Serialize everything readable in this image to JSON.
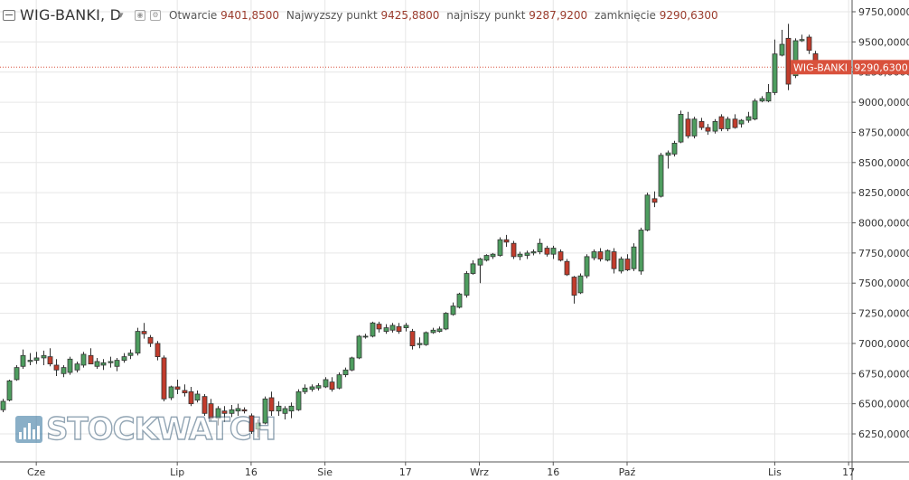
{
  "header": {
    "symbol_title": "WIG-BANKI, D",
    "open_label": "Otwarcie",
    "open_value": "9401,8500",
    "high_label": "Najwyzszy punkt",
    "high_value": "9425,8800",
    "low_label": "najniszy punkt",
    "low_value": "9287,9200",
    "close_label": "zamknięcie",
    "close_value": "9290,6300"
  },
  "price_tag": {
    "name": "WIG-BANKI",
    "value": "9290,6300"
  },
  "watermark": {
    "text": "STOCKWATCH"
  },
  "colors": {
    "up": "#4e9d5f",
    "down": "#c23c2c",
    "wick": "#333333",
    "grid": "#e6e6e6",
    "tag": "#d9513c",
    "last_price_line": "#d9513c"
  },
  "chart_data": {
    "type": "candlestick",
    "title": "WIG-BANKI, D",
    "ylim": [
      6120,
      9800
    ],
    "y_ticks": [
      6250,
      6500,
      6750,
      7000,
      7250,
      7500,
      7750,
      8000,
      8250,
      8500,
      8750,
      9000,
      9250,
      9500,
      9750
    ],
    "y_tick_labels": [
      "6250,0000",
      "6500,0000",
      "6750,0000",
      "7000,0000",
      "7250,0000",
      "7500,0000",
      "7750,0000",
      "8000,0000",
      "8250,0000",
      "8500,0000",
      "8750,0000",
      "9000,0000",
      "9250,0000",
      "9500,0000",
      "9750,0000"
    ],
    "x_tick_labels": [
      {
        "label": "Cze",
        "index": 5
      },
      {
        "label": "Lip",
        "index": 26
      },
      {
        "label": "16",
        "index": 37
      },
      {
        "label": "Sie",
        "index": 48
      },
      {
        "label": "17",
        "index": 60
      },
      {
        "label": "Wrz",
        "index": 71
      },
      {
        "label": "16",
        "index": 82
      },
      {
        "label": "Paź",
        "index": 93
      },
      {
        "label": "Lis",
        "index": 115
      },
      {
        "label": "17",
        "index": 126
      }
    ],
    "last_price": 9290.63,
    "grid": true,
    "candles": [
      {
        "o": 6450,
        "h": 6540,
        "l": 6430,
        "c": 6520
      },
      {
        "o": 6530,
        "h": 6700,
        "l": 6520,
        "c": 6690
      },
      {
        "o": 6700,
        "h": 6820,
        "l": 6690,
        "c": 6800
      },
      {
        "o": 6810,
        "h": 6950,
        "l": 6790,
        "c": 6900
      },
      {
        "o": 6850,
        "h": 6920,
        "l": 6820,
        "c": 6860
      },
      {
        "o": 6860,
        "h": 6930,
        "l": 6830,
        "c": 6880
      },
      {
        "o": 6880,
        "h": 6940,
        "l": 6820,
        "c": 6900
      },
      {
        "o": 6890,
        "h": 6960,
        "l": 6810,
        "c": 6830
      },
      {
        "o": 6820,
        "h": 6870,
        "l": 6730,
        "c": 6780
      },
      {
        "o": 6750,
        "h": 6820,
        "l": 6720,
        "c": 6800
      },
      {
        "o": 6760,
        "h": 6890,
        "l": 6740,
        "c": 6870
      },
      {
        "o": 6780,
        "h": 6850,
        "l": 6760,
        "c": 6830
      },
      {
        "o": 6820,
        "h": 6930,
        "l": 6800,
        "c": 6910
      },
      {
        "o": 6900,
        "h": 6960,
        "l": 6840,
        "c": 6830
      },
      {
        "o": 6810,
        "h": 6880,
        "l": 6790,
        "c": 6850
      },
      {
        "o": 6820,
        "h": 6870,
        "l": 6780,
        "c": 6840
      },
      {
        "o": 6840,
        "h": 6890,
        "l": 6800,
        "c": 6850
      },
      {
        "o": 6810,
        "h": 6880,
        "l": 6770,
        "c": 6860
      },
      {
        "o": 6860,
        "h": 6920,
        "l": 6840,
        "c": 6890
      },
      {
        "o": 6900,
        "h": 6950,
        "l": 6870,
        "c": 6920
      },
      {
        "o": 6920,
        "h": 7130,
        "l": 6900,
        "c": 7100
      },
      {
        "o": 7100,
        "h": 7170,
        "l": 7040,
        "c": 7080
      },
      {
        "o": 7050,
        "h": 7070,
        "l": 6970,
        "c": 7000
      },
      {
        "o": 7000,
        "h": 7020,
        "l": 6860,
        "c": 6890
      },
      {
        "o": 6880,
        "h": 6900,
        "l": 6520,
        "c": 6540
      },
      {
        "o": 6550,
        "h": 6650,
        "l": 6530,
        "c": 6640
      },
      {
        "o": 6640,
        "h": 6700,
        "l": 6580,
        "c": 6620
      },
      {
        "o": 6610,
        "h": 6660,
        "l": 6560,
        "c": 6590
      },
      {
        "o": 6600,
        "h": 6640,
        "l": 6480,
        "c": 6500
      },
      {
        "o": 6530,
        "h": 6610,
        "l": 6510,
        "c": 6580
      },
      {
        "o": 6560,
        "h": 6580,
        "l": 6400,
        "c": 6420
      },
      {
        "o": 6500,
        "h": 6540,
        "l": 6360,
        "c": 6380
      },
      {
        "o": 6380,
        "h": 6480,
        "l": 6320,
        "c": 6460
      },
      {
        "o": 6440,
        "h": 6480,
        "l": 6350,
        "c": 6420
      },
      {
        "o": 6420,
        "h": 6490,
        "l": 6390,
        "c": 6450
      },
      {
        "o": 6440,
        "h": 6500,
        "l": 6400,
        "c": 6460
      },
      {
        "o": 6450,
        "h": 6470,
        "l": 6420,
        "c": 6440
      },
      {
        "o": 6400,
        "h": 6420,
        "l": 6250,
        "c": 6270
      },
      {
        "o": 6290,
        "h": 6370,
        "l": 6220,
        "c": 6340
      },
      {
        "o": 6340,
        "h": 6560,
        "l": 6330,
        "c": 6540
      },
      {
        "o": 6550,
        "h": 6600,
        "l": 6400,
        "c": 6440
      },
      {
        "o": 6440,
        "h": 6520,
        "l": 6400,
        "c": 6480
      },
      {
        "o": 6420,
        "h": 6480,
        "l": 6370,
        "c": 6460
      },
      {
        "o": 6440,
        "h": 6510,
        "l": 6380,
        "c": 6480
      },
      {
        "o": 6450,
        "h": 6620,
        "l": 6440,
        "c": 6600
      },
      {
        "o": 6600,
        "h": 6660,
        "l": 6580,
        "c": 6630
      },
      {
        "o": 6620,
        "h": 6660,
        "l": 6600,
        "c": 6640
      },
      {
        "o": 6630,
        "h": 6670,
        "l": 6610,
        "c": 6650
      },
      {
        "o": 6640,
        "h": 6720,
        "l": 6630,
        "c": 6700
      },
      {
        "o": 6680,
        "h": 6720,
        "l": 6600,
        "c": 6620
      },
      {
        "o": 6630,
        "h": 6760,
        "l": 6620,
        "c": 6740
      },
      {
        "o": 6740,
        "h": 6800,
        "l": 6720,
        "c": 6780
      },
      {
        "o": 6780,
        "h": 6890,
        "l": 6770,
        "c": 6880
      },
      {
        "o": 6880,
        "h": 7070,
        "l": 6870,
        "c": 7060
      },
      {
        "o": 7060,
        "h": 7080,
        "l": 7040,
        "c": 7060
      },
      {
        "o": 7060,
        "h": 7180,
        "l": 7050,
        "c": 7170
      },
      {
        "o": 7160,
        "h": 7180,
        "l": 7090,
        "c": 7120
      },
      {
        "o": 7100,
        "h": 7160,
        "l": 7080,
        "c": 7130
      },
      {
        "o": 7110,
        "h": 7170,
        "l": 7090,
        "c": 7150
      },
      {
        "o": 7140,
        "h": 7170,
        "l": 7080,
        "c": 7100
      },
      {
        "o": 7130,
        "h": 7170,
        "l": 7100,
        "c": 7150
      },
      {
        "o": 7100,
        "h": 7120,
        "l": 6950,
        "c": 6980
      },
      {
        "o": 6990,
        "h": 7050,
        "l": 6960,
        "c": 7000
      },
      {
        "o": 6990,
        "h": 7100,
        "l": 6980,
        "c": 7090
      },
      {
        "o": 7090,
        "h": 7130,
        "l": 7080,
        "c": 7110
      },
      {
        "o": 7100,
        "h": 7140,
        "l": 7090,
        "c": 7120
      },
      {
        "o": 7120,
        "h": 7260,
        "l": 7110,
        "c": 7250
      },
      {
        "o": 7240,
        "h": 7340,
        "l": 7230,
        "c": 7310
      },
      {
        "o": 7300,
        "h": 7420,
        "l": 7290,
        "c": 7410
      },
      {
        "o": 7400,
        "h": 7600,
        "l": 7380,
        "c": 7580
      },
      {
        "o": 7580,
        "h": 7690,
        "l": 7570,
        "c": 7660
      },
      {
        "o": 7650,
        "h": 7710,
        "l": 7500,
        "c": 7700
      },
      {
        "o": 7690,
        "h": 7740,
        "l": 7680,
        "c": 7730
      },
      {
        "o": 7720,
        "h": 7750,
        "l": 7700,
        "c": 7740
      },
      {
        "o": 7730,
        "h": 7880,
        "l": 7720,
        "c": 7860
      },
      {
        "o": 7860,
        "h": 7900,
        "l": 7800,
        "c": 7840
      },
      {
        "o": 7830,
        "h": 7850,
        "l": 7700,
        "c": 7720
      },
      {
        "o": 7720,
        "h": 7760,
        "l": 7690,
        "c": 7740
      },
      {
        "o": 7730,
        "h": 7770,
        "l": 7700,
        "c": 7750
      },
      {
        "o": 7750,
        "h": 7780,
        "l": 7730,
        "c": 7760
      },
      {
        "o": 7760,
        "h": 7870,
        "l": 7740,
        "c": 7830
      },
      {
        "o": 7790,
        "h": 7810,
        "l": 7720,
        "c": 7740
      },
      {
        "o": 7740,
        "h": 7810,
        "l": 7700,
        "c": 7790
      },
      {
        "o": 7760,
        "h": 7780,
        "l": 7680,
        "c": 7690
      },
      {
        "o": 7680,
        "h": 7700,
        "l": 7560,
        "c": 7570
      },
      {
        "o": 7550,
        "h": 7560,
        "l": 7330,
        "c": 7400
      },
      {
        "o": 7420,
        "h": 7580,
        "l": 7410,
        "c": 7560
      },
      {
        "o": 7560,
        "h": 7740,
        "l": 7540,
        "c": 7720
      },
      {
        "o": 7710,
        "h": 7780,
        "l": 7690,
        "c": 7760
      },
      {
        "o": 7760,
        "h": 7790,
        "l": 7680,
        "c": 7700
      },
      {
        "o": 7690,
        "h": 7780,
        "l": 7680,
        "c": 7770
      },
      {
        "o": 7760,
        "h": 7790,
        "l": 7580,
        "c": 7620
      },
      {
        "o": 7600,
        "h": 7720,
        "l": 7580,
        "c": 7700
      },
      {
        "o": 7700,
        "h": 7740,
        "l": 7600,
        "c": 7610
      },
      {
        "o": 7620,
        "h": 7830,
        "l": 7600,
        "c": 7800
      },
      {
        "o": 7600,
        "h": 7960,
        "l": 7570,
        "c": 7940
      },
      {
        "o": 7940,
        "h": 8250,
        "l": 7930,
        "c": 8230
      },
      {
        "o": 8200,
        "h": 8260,
        "l": 8130,
        "c": 8170
      },
      {
        "o": 8220,
        "h": 8580,
        "l": 8210,
        "c": 8560
      },
      {
        "o": 8560,
        "h": 8600,
        "l": 8450,
        "c": 8580
      },
      {
        "o": 8570,
        "h": 8680,
        "l": 8550,
        "c": 8660
      },
      {
        "o": 8670,
        "h": 8930,
        "l": 8660,
        "c": 8900
      },
      {
        "o": 8860,
        "h": 8920,
        "l": 8700,
        "c": 8720
      },
      {
        "o": 8720,
        "h": 8880,
        "l": 8700,
        "c": 8860
      },
      {
        "o": 8840,
        "h": 8870,
        "l": 8770,
        "c": 8790
      },
      {
        "o": 8790,
        "h": 8820,
        "l": 8730,
        "c": 8760
      },
      {
        "o": 8760,
        "h": 8860,
        "l": 8740,
        "c": 8840
      },
      {
        "o": 8880,
        "h": 8900,
        "l": 8760,
        "c": 8780
      },
      {
        "o": 8780,
        "h": 8880,
        "l": 8760,
        "c": 8860
      },
      {
        "o": 8860,
        "h": 8900,
        "l": 8780,
        "c": 8790
      },
      {
        "o": 8820,
        "h": 8860,
        "l": 8790,
        "c": 8850
      },
      {
        "o": 8850,
        "h": 8920,
        "l": 8830,
        "c": 8880
      },
      {
        "o": 8860,
        "h": 9030,
        "l": 8850,
        "c": 9010
      },
      {
        "o": 9010,
        "h": 9050,
        "l": 9000,
        "c": 9030
      },
      {
        "o": 9010,
        "h": 9150,
        "l": 9000,
        "c": 9080
      },
      {
        "o": 9080,
        "h": 9520,
        "l": 9060,
        "c": 9400
      },
      {
        "o": 9390,
        "h": 9600,
        "l": 9380,
        "c": 9480
      },
      {
        "o": 9530,
        "h": 9650,
        "l": 9100,
        "c": 9150
      },
      {
        "o": 9220,
        "h": 9530,
        "l": 9200,
        "c": 9510
      },
      {
        "o": 9510,
        "h": 9560,
        "l": 9500,
        "c": 9520
      },
      {
        "o": 9540,
        "h": 9560,
        "l": 9400,
        "c": 9430
      },
      {
        "o": 9401.85,
        "h": 9425.88,
        "l": 9287.92,
        "c": 9290.63
      }
    ]
  }
}
